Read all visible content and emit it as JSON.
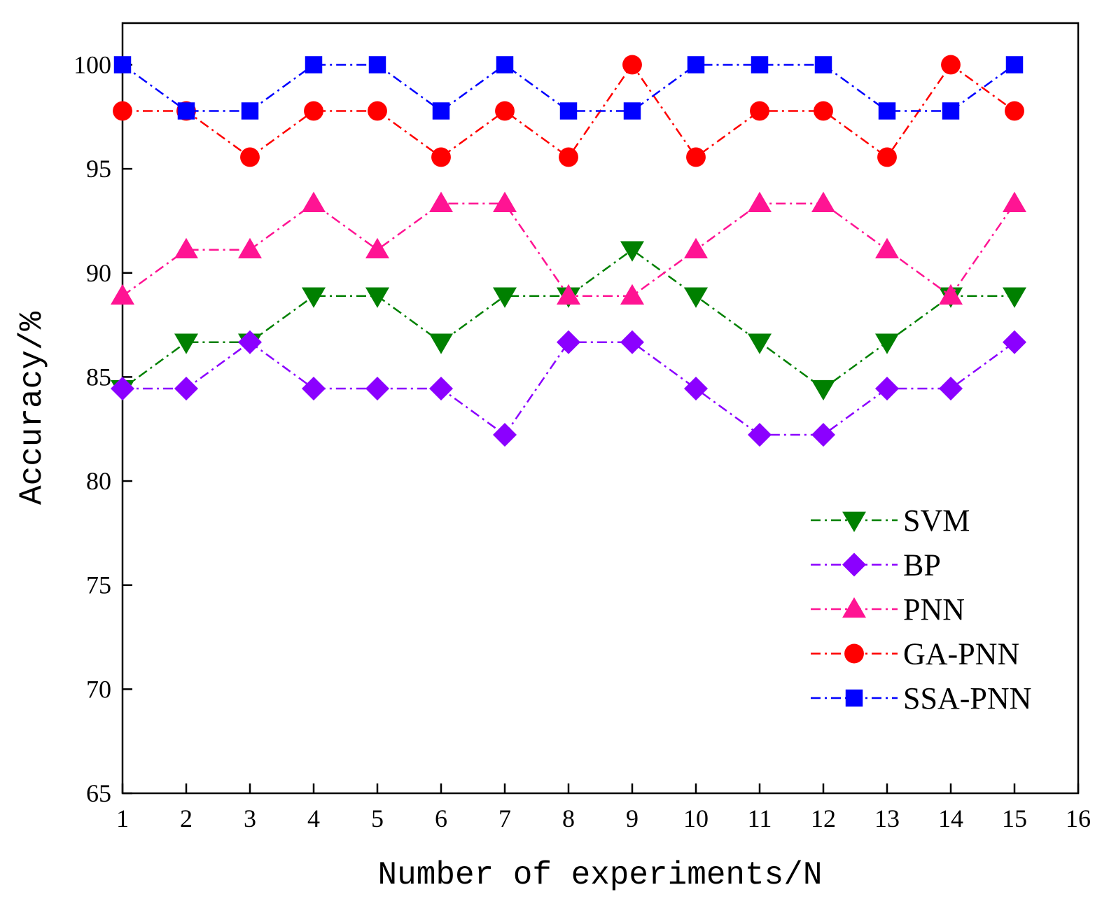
{
  "chart_data": {
    "type": "line",
    "title": "",
    "xlabel": "Number of experiments/N",
    "ylabel": "Accuracy/%",
    "xlim": [
      1,
      16
    ],
    "ylim": [
      65,
      102
    ],
    "xticks": [
      1,
      2,
      3,
      4,
      5,
      6,
      7,
      8,
      9,
      10,
      11,
      12,
      13,
      14,
      15,
      16
    ],
    "yticks": [
      65,
      70,
      75,
      80,
      85,
      90,
      95,
      100
    ],
    "legend_position": "bottom-right",
    "x": [
      1,
      2,
      3,
      4,
      5,
      6,
      7,
      8,
      9,
      10,
      11,
      12,
      13,
      14,
      15
    ],
    "series": [
      {
        "name": "SVM",
        "color": "#008000",
        "marker": "triangle-down",
        "values": [
          84.44,
          86.67,
          86.67,
          88.89,
          88.89,
          86.67,
          88.89,
          88.89,
          91.11,
          88.89,
          86.67,
          84.44,
          86.67,
          88.89,
          88.89
        ]
      },
      {
        "name": "BP",
        "color": "#8B00FF",
        "marker": "diamond",
        "values": [
          84.44,
          84.44,
          86.67,
          84.44,
          84.44,
          84.44,
          82.22,
          86.67,
          86.67,
          84.44,
          82.22,
          82.22,
          84.44,
          84.44,
          86.67
        ]
      },
      {
        "name": "PNN",
        "color": "#FF1493",
        "marker": "triangle-up",
        "values": [
          88.89,
          91.11,
          91.11,
          93.33,
          91.11,
          93.33,
          93.33,
          88.89,
          88.89,
          91.11,
          93.33,
          93.33,
          91.11,
          88.89,
          93.33
        ]
      },
      {
        "name": "GA-PNN",
        "color": "#FF0000",
        "marker": "circle",
        "values": [
          97.78,
          97.78,
          95.56,
          97.78,
          97.78,
          95.56,
          97.78,
          95.56,
          100,
          95.56,
          97.78,
          97.78,
          95.56,
          100,
          97.78
        ]
      },
      {
        "name": "SSA-PNN",
        "color": "#0000FF",
        "marker": "square",
        "values": [
          100,
          97.78,
          97.78,
          100,
          100,
          97.78,
          100,
          97.78,
          97.78,
          100,
          100,
          100,
          97.78,
          97.78,
          100
        ]
      }
    ]
  }
}
